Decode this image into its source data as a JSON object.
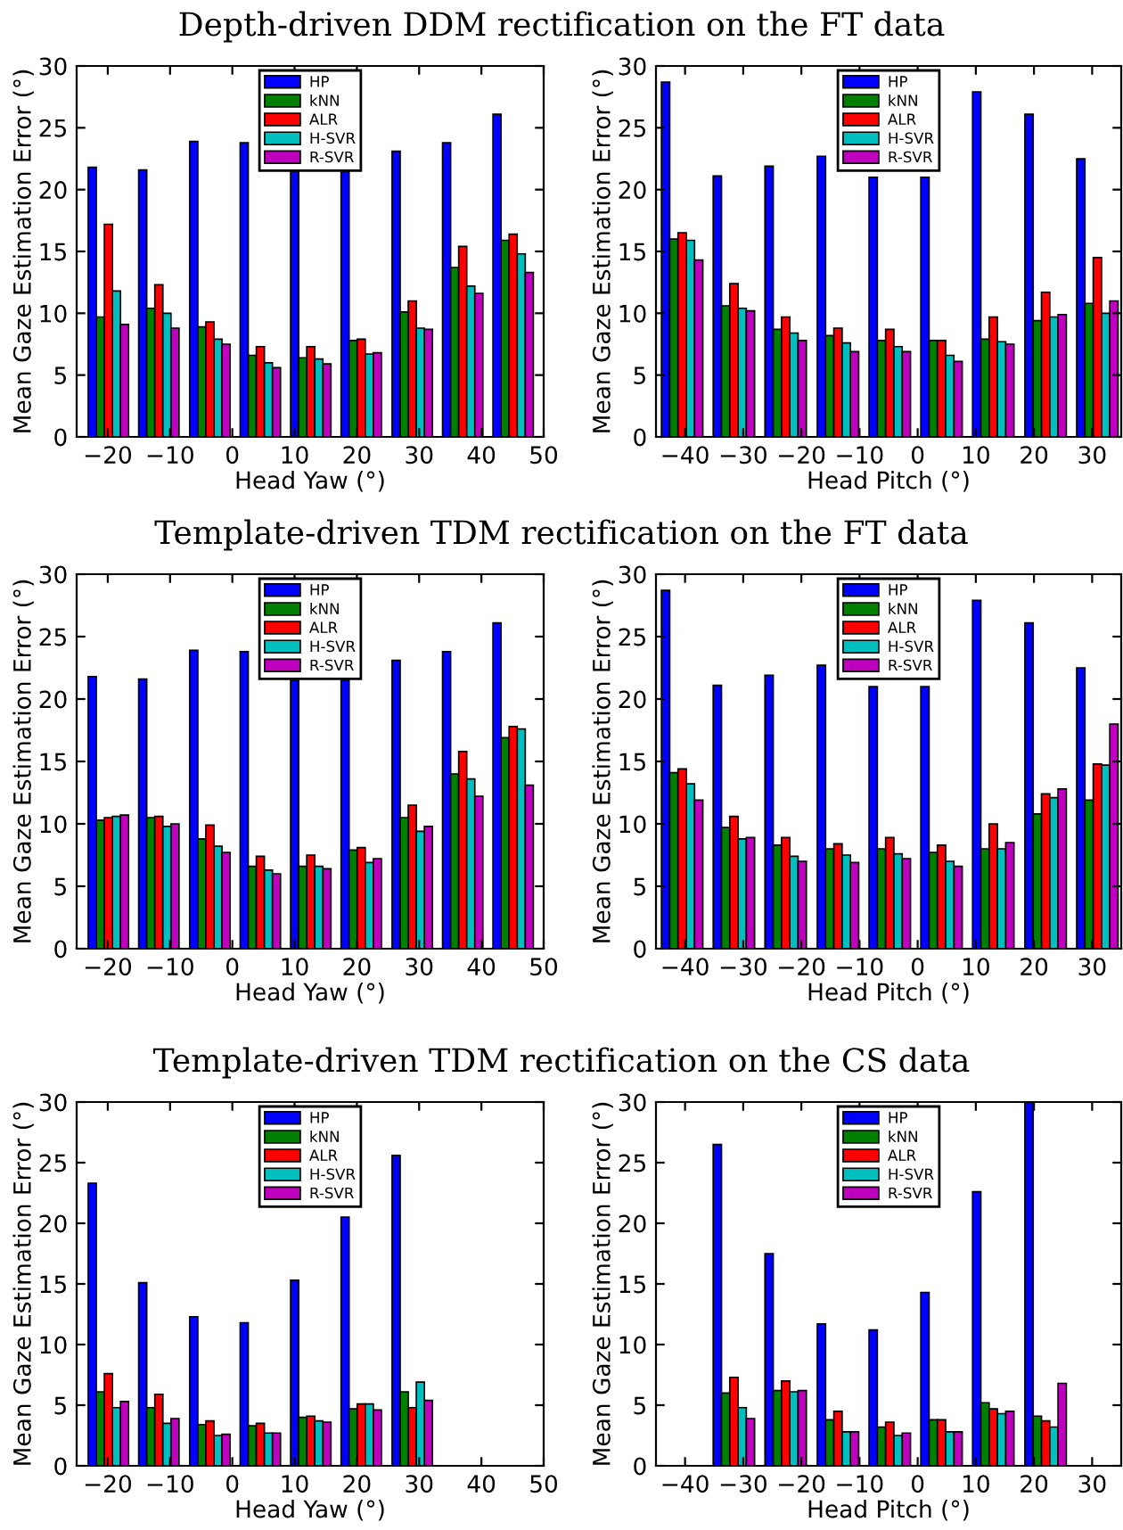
{
  "chart_data": [
    {
      "type": "bar",
      "title": "Depth-driven DDM rectification on the FT data",
      "xlabel": "Head Yaw (°)",
      "ylabel": "Mean Gaze Estimation Error (°)",
      "x": [
        -19.9,
        -11.8,
        -3.6,
        4.5,
        12.6,
        20.7,
        28.9,
        37.0,
        45.1
      ],
      "xlim": [
        -25,
        50
      ],
      "xticks": [
        -20,
        -10,
        0,
        10,
        20,
        30,
        40,
        50
      ],
      "ylim": [
        0,
        30
      ],
      "yticks": [
        0,
        5,
        10,
        15,
        20,
        25,
        30
      ],
      "grid": false,
      "legend": "top",
      "series": [
        {
          "name": "HP",
          "color": "#0000ff",
          "values": [
            21.8,
            21.6,
            23.9,
            23.8,
            21.5,
            21.5,
            23.1,
            23.8,
            26.1
          ]
        },
        {
          "name": "kNN",
          "color": "#008000",
          "values": [
            9.7,
            10.4,
            8.9,
            6.6,
            6.4,
            7.8,
            10.1,
            13.7,
            15.9
          ]
        },
        {
          "name": "ALR",
          "color": "#ff0000",
          "values": [
            17.2,
            12.3,
            9.3,
            7.3,
            7.3,
            7.9,
            11.0,
            15.4,
            16.4
          ]
        },
        {
          "name": "H-SVR",
          "color": "#00bfbf",
          "values": [
            11.8,
            10.0,
            7.9,
            6.0,
            6.3,
            6.7,
            8.8,
            12.2,
            14.8
          ]
        },
        {
          "name": "R-SVR",
          "color": "#bf00bf",
          "values": [
            9.1,
            8.8,
            7.5,
            5.6,
            5.9,
            6.8,
            8.7,
            11.6,
            13.3
          ]
        }
      ]
    },
    {
      "type": "bar",
      "xlabel": "Head Pitch (°)",
      "ylabel": "Mean Gaze Estimation Error (°)",
      "x": [
        -40.5,
        -31.6,
        -22.7,
        -13.7,
        -4.8,
        4.1,
        13.0,
        22.0,
        30.9
      ],
      "xlim": [
        -45,
        35
      ],
      "xticks": [
        -40,
        -30,
        -20,
        -10,
        0,
        10,
        20,
        30
      ],
      "ylim": [
        0,
        30
      ],
      "yticks": [
        0,
        5,
        10,
        15,
        20,
        25,
        30
      ],
      "grid": false,
      "legend": "top",
      "series": [
        {
          "name": "HP",
          "color": "#0000ff",
          "values": [
            28.7,
            21.1,
            21.9,
            22.7,
            21.0,
            21.0,
            27.9,
            26.1,
            22.5
          ]
        },
        {
          "name": "kNN",
          "color": "#008000",
          "values": [
            16.0,
            10.6,
            8.7,
            8.2,
            7.8,
            7.8,
            7.9,
            9.4,
            10.8
          ]
        },
        {
          "name": "ALR",
          "color": "#ff0000",
          "values": [
            16.5,
            12.4,
            9.7,
            8.8,
            8.7,
            7.8,
            9.7,
            11.7,
            14.5
          ]
        },
        {
          "name": "H-SVR",
          "color": "#00bfbf",
          "values": [
            15.9,
            10.4,
            8.4,
            7.6,
            7.3,
            6.6,
            7.7,
            9.7,
            10.0
          ]
        },
        {
          "name": "R-SVR",
          "color": "#bf00bf",
          "values": [
            14.3,
            10.2,
            7.8,
            6.9,
            6.9,
            6.1,
            7.5,
            9.9,
            11.0
          ]
        }
      ]
    },
    {
      "type": "bar",
      "title": "Template-driven TDM rectification on the FT data",
      "xlabel": "Head Yaw (°)",
      "ylabel": "Mean Gaze Estimation Error (°)",
      "x": [
        -19.9,
        -11.8,
        -3.6,
        4.5,
        12.6,
        20.7,
        28.9,
        37.0,
        45.1
      ],
      "xlim": [
        -25,
        50
      ],
      "xticks": [
        -20,
        -10,
        0,
        10,
        20,
        30,
        40,
        50
      ],
      "ylim": [
        0,
        30
      ],
      "yticks": [
        0,
        5,
        10,
        15,
        20,
        25,
        30
      ],
      "grid": false,
      "legend": "top",
      "series": [
        {
          "name": "HP",
          "color": "#0000ff",
          "values": [
            21.8,
            21.6,
            23.9,
            23.8,
            21.5,
            21.5,
            23.1,
            23.8,
            26.1
          ]
        },
        {
          "name": "kNN",
          "color": "#008000",
          "values": [
            10.3,
            10.5,
            8.8,
            6.6,
            6.6,
            7.9,
            10.5,
            14.0,
            16.9
          ]
        },
        {
          "name": "ALR",
          "color": "#ff0000",
          "values": [
            10.5,
            10.6,
            9.9,
            7.4,
            7.5,
            8.1,
            11.5,
            15.8,
            17.8
          ]
        },
        {
          "name": "H-SVR",
          "color": "#00bfbf",
          "values": [
            10.6,
            9.8,
            8.2,
            6.3,
            6.6,
            6.9,
            9.4,
            13.6,
            17.6
          ]
        },
        {
          "name": "R-SVR",
          "color": "#bf00bf",
          "values": [
            10.7,
            10.0,
            7.7,
            6.0,
            6.4,
            7.2,
            9.8,
            12.2,
            13.1
          ]
        }
      ]
    },
    {
      "type": "bar",
      "xlabel": "Head Pitch (°)",
      "ylabel": "Mean Gaze Estimation Error (°)",
      "x": [
        -40.5,
        -31.6,
        -22.7,
        -13.7,
        -4.8,
        4.1,
        13.0,
        22.0,
        30.9
      ],
      "xlim": [
        -45,
        35
      ],
      "xticks": [
        -40,
        -30,
        -20,
        -10,
        0,
        10,
        20,
        30
      ],
      "ylim": [
        0,
        30
      ],
      "yticks": [
        0,
        5,
        10,
        15,
        20,
        25,
        30
      ],
      "grid": false,
      "legend": "top",
      "series": [
        {
          "name": "HP",
          "color": "#0000ff",
          "values": [
            28.7,
            21.1,
            21.9,
            22.7,
            21.0,
            21.0,
            27.9,
            26.1,
            22.5
          ]
        },
        {
          "name": "kNN",
          "color": "#008000",
          "values": [
            14.1,
            9.7,
            8.3,
            8.0,
            8.0,
            7.7,
            8.0,
            10.8,
            11.9
          ]
        },
        {
          "name": "ALR",
          "color": "#ff0000",
          "values": [
            14.4,
            10.6,
            8.9,
            8.4,
            8.9,
            8.3,
            10.0,
            12.4,
            14.8
          ]
        },
        {
          "name": "H-SVR",
          "color": "#00bfbf",
          "values": [
            13.2,
            8.8,
            7.4,
            7.5,
            7.6,
            7.0,
            8.0,
            12.1,
            14.7
          ]
        },
        {
          "name": "R-SVR",
          "color": "#bf00bf",
          "values": [
            11.9,
            8.9,
            7.0,
            6.9,
            7.2,
            6.6,
            8.5,
            12.8,
            18.0
          ]
        }
      ]
    },
    {
      "type": "bar",
      "title": "Template-driven TDM rectification on the CS data",
      "xlabel": "Head Yaw (°)",
      "ylabel": "Mean Gaze Estimation Error (°)",
      "x": [
        -19.9,
        -11.8,
        -3.6,
        4.5,
        12.6,
        20.7,
        28.9
      ],
      "xlim": [
        -25,
        50
      ],
      "xticks": [
        -20,
        -10,
        0,
        10,
        20,
        30,
        40,
        50
      ],
      "ylim": [
        0,
        30
      ],
      "yticks": [
        0,
        5,
        10,
        15,
        20,
        25,
        30
      ],
      "grid": false,
      "legend": "top",
      "series": [
        {
          "name": "HP",
          "color": "#0000ff",
          "values": [
            23.3,
            15.1,
            12.3,
            11.8,
            15.3,
            20.5,
            25.6
          ]
        },
        {
          "name": "kNN",
          "color": "#008000",
          "values": [
            6.1,
            4.8,
            3.4,
            3.3,
            4.0,
            4.7,
            6.1
          ]
        },
        {
          "name": "ALR",
          "color": "#ff0000",
          "values": [
            7.6,
            5.9,
            3.7,
            3.5,
            4.1,
            5.1,
            4.8
          ]
        },
        {
          "name": "H-SVR",
          "color": "#00bfbf",
          "values": [
            4.8,
            3.5,
            2.5,
            2.7,
            3.7,
            5.1,
            6.9
          ]
        },
        {
          "name": "R-SVR",
          "color": "#bf00bf",
          "values": [
            5.3,
            3.9,
            2.6,
            2.7,
            3.6,
            4.6,
            5.4
          ]
        }
      ]
    },
    {
      "type": "bar",
      "xlabel": "Head Pitch (°)",
      "ylabel": "Mean Gaze Estimation Error (°)",
      "x": [
        -31.6,
        -22.7,
        -13.7,
        -4.8,
        4.1,
        13.0,
        22.0
      ],
      "xlim": [
        -45,
        35
      ],
      "xticks": [
        -40,
        -30,
        -20,
        -10,
        0,
        10,
        20,
        30
      ],
      "ylim": [
        0,
        30
      ],
      "yticks": [
        0,
        5,
        10,
        15,
        20,
        25,
        30
      ],
      "grid": false,
      "legend": "top",
      "series": [
        {
          "name": "HP",
          "color": "#0000ff",
          "values": [
            26.5,
            17.5,
            11.7,
            11.2,
            14.3,
            22.6,
            30.0
          ]
        },
        {
          "name": "kNN",
          "color": "#008000",
          "values": [
            6.0,
            6.2,
            3.8,
            3.2,
            3.8,
            5.2,
            4.1
          ]
        },
        {
          "name": "ALR",
          "color": "#ff0000",
          "values": [
            7.3,
            7.0,
            4.5,
            3.6,
            3.8,
            4.7,
            3.7
          ]
        },
        {
          "name": "H-SVR",
          "color": "#00bfbf",
          "values": [
            4.8,
            6.1,
            2.8,
            2.5,
            2.8,
            4.3,
            3.2
          ]
        },
        {
          "name": "R-SVR",
          "color": "#bf00bf",
          "values": [
            3.9,
            6.2,
            2.8,
            2.7,
            2.8,
            4.5,
            6.8
          ]
        }
      ]
    }
  ]
}
